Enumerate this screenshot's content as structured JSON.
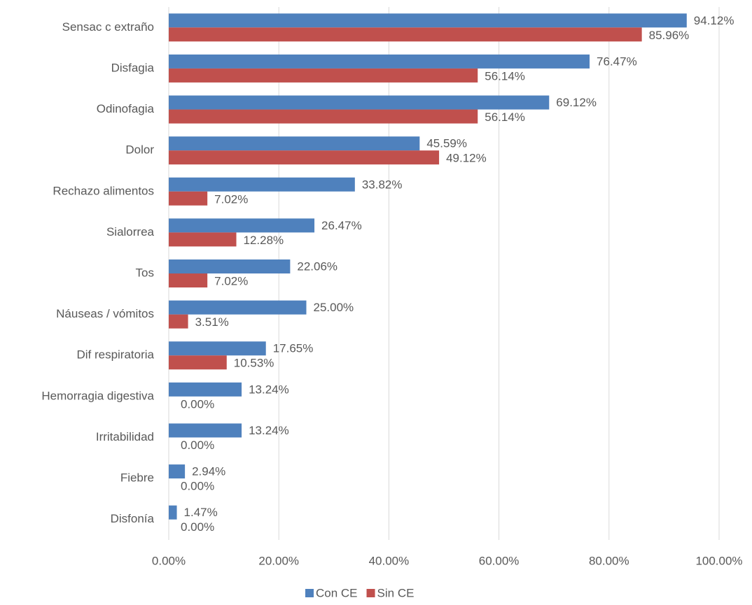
{
  "chart_data": {
    "type": "hbar",
    "categories": [
      "Sensac c extraño",
      "Disfagia",
      "Odinofagia",
      "Dolor",
      "Rechazo alimentos",
      "Sialorrea",
      "Tos",
      "Náuseas / vómitos",
      "Dif respiratoria",
      "Hemorragia digestiva",
      "Irritabilidad",
      "Fiebre",
      "Disfonía"
    ],
    "series": [
      {
        "name": "Con CE",
        "color": "#4f81bd",
        "values": [
          94.12,
          76.47,
          69.12,
          45.59,
          33.82,
          26.47,
          22.06,
          25.0,
          17.65,
          13.24,
          13.24,
          2.94,
          1.47
        ],
        "value_labels": [
          "94.12%",
          "76.47%",
          "69.12%",
          "45.59%",
          "33.82%",
          "26.47%",
          "22.06%",
          "25.00%",
          "17.65%",
          "13.24%",
          "13.24%",
          "2.94%",
          "1.47%"
        ]
      },
      {
        "name": "Sin CE",
        "color": "#c0504d",
        "values": [
          85.96,
          56.14,
          56.14,
          49.12,
          7.02,
          12.28,
          7.02,
          3.51,
          10.53,
          0,
          0,
          0,
          0
        ],
        "value_labels": [
          "85.96%",
          "56.14%",
          "56.14%",
          "49.12%",
          "7.02%",
          "12.28%",
          "7.02%",
          "3.51%",
          "10.53%",
          "0.00%",
          "0.00%",
          "0.00%",
          "0.00%"
        ]
      }
    ],
    "xlim": [
      0,
      100
    ],
    "xticks": [
      {
        "value": 0,
        "label": "0.00%"
      },
      {
        "value": 20,
        "label": "20.00%"
      },
      {
        "value": 40,
        "label": "40.00%"
      },
      {
        "value": 60,
        "label": "60.00%"
      },
      {
        "value": 80,
        "label": "80.00%"
      },
      {
        "value": 100,
        "label": "100.00%"
      }
    ],
    "grid": true,
    "legend": "bottom"
  }
}
